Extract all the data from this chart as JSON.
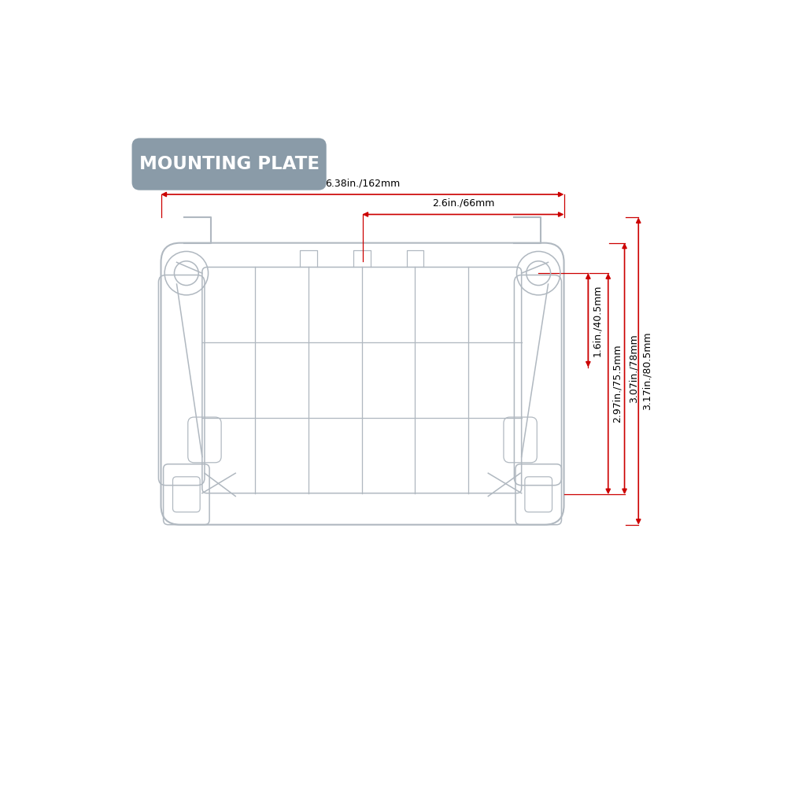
{
  "title": "MOUNTING PLATE",
  "title_bg_color": "#8a9ba8",
  "title_text_color": "#ffffff",
  "dim_color": "#cc0000",
  "outline_color": "#b0b8c0",
  "bg_color": "#ffffff",
  "dim_horiz1_label": "6.38in./162mm",
  "dim_horiz2_label": "2.6in./66mm",
  "dim_vert1_label": "1.6in./40.5mm",
  "dim_vert2_label": "2.97in./75.5mm",
  "dim_vert3_label": "3.07in./78mm",
  "dim_vert4_label": "3.17in./80.5mm"
}
